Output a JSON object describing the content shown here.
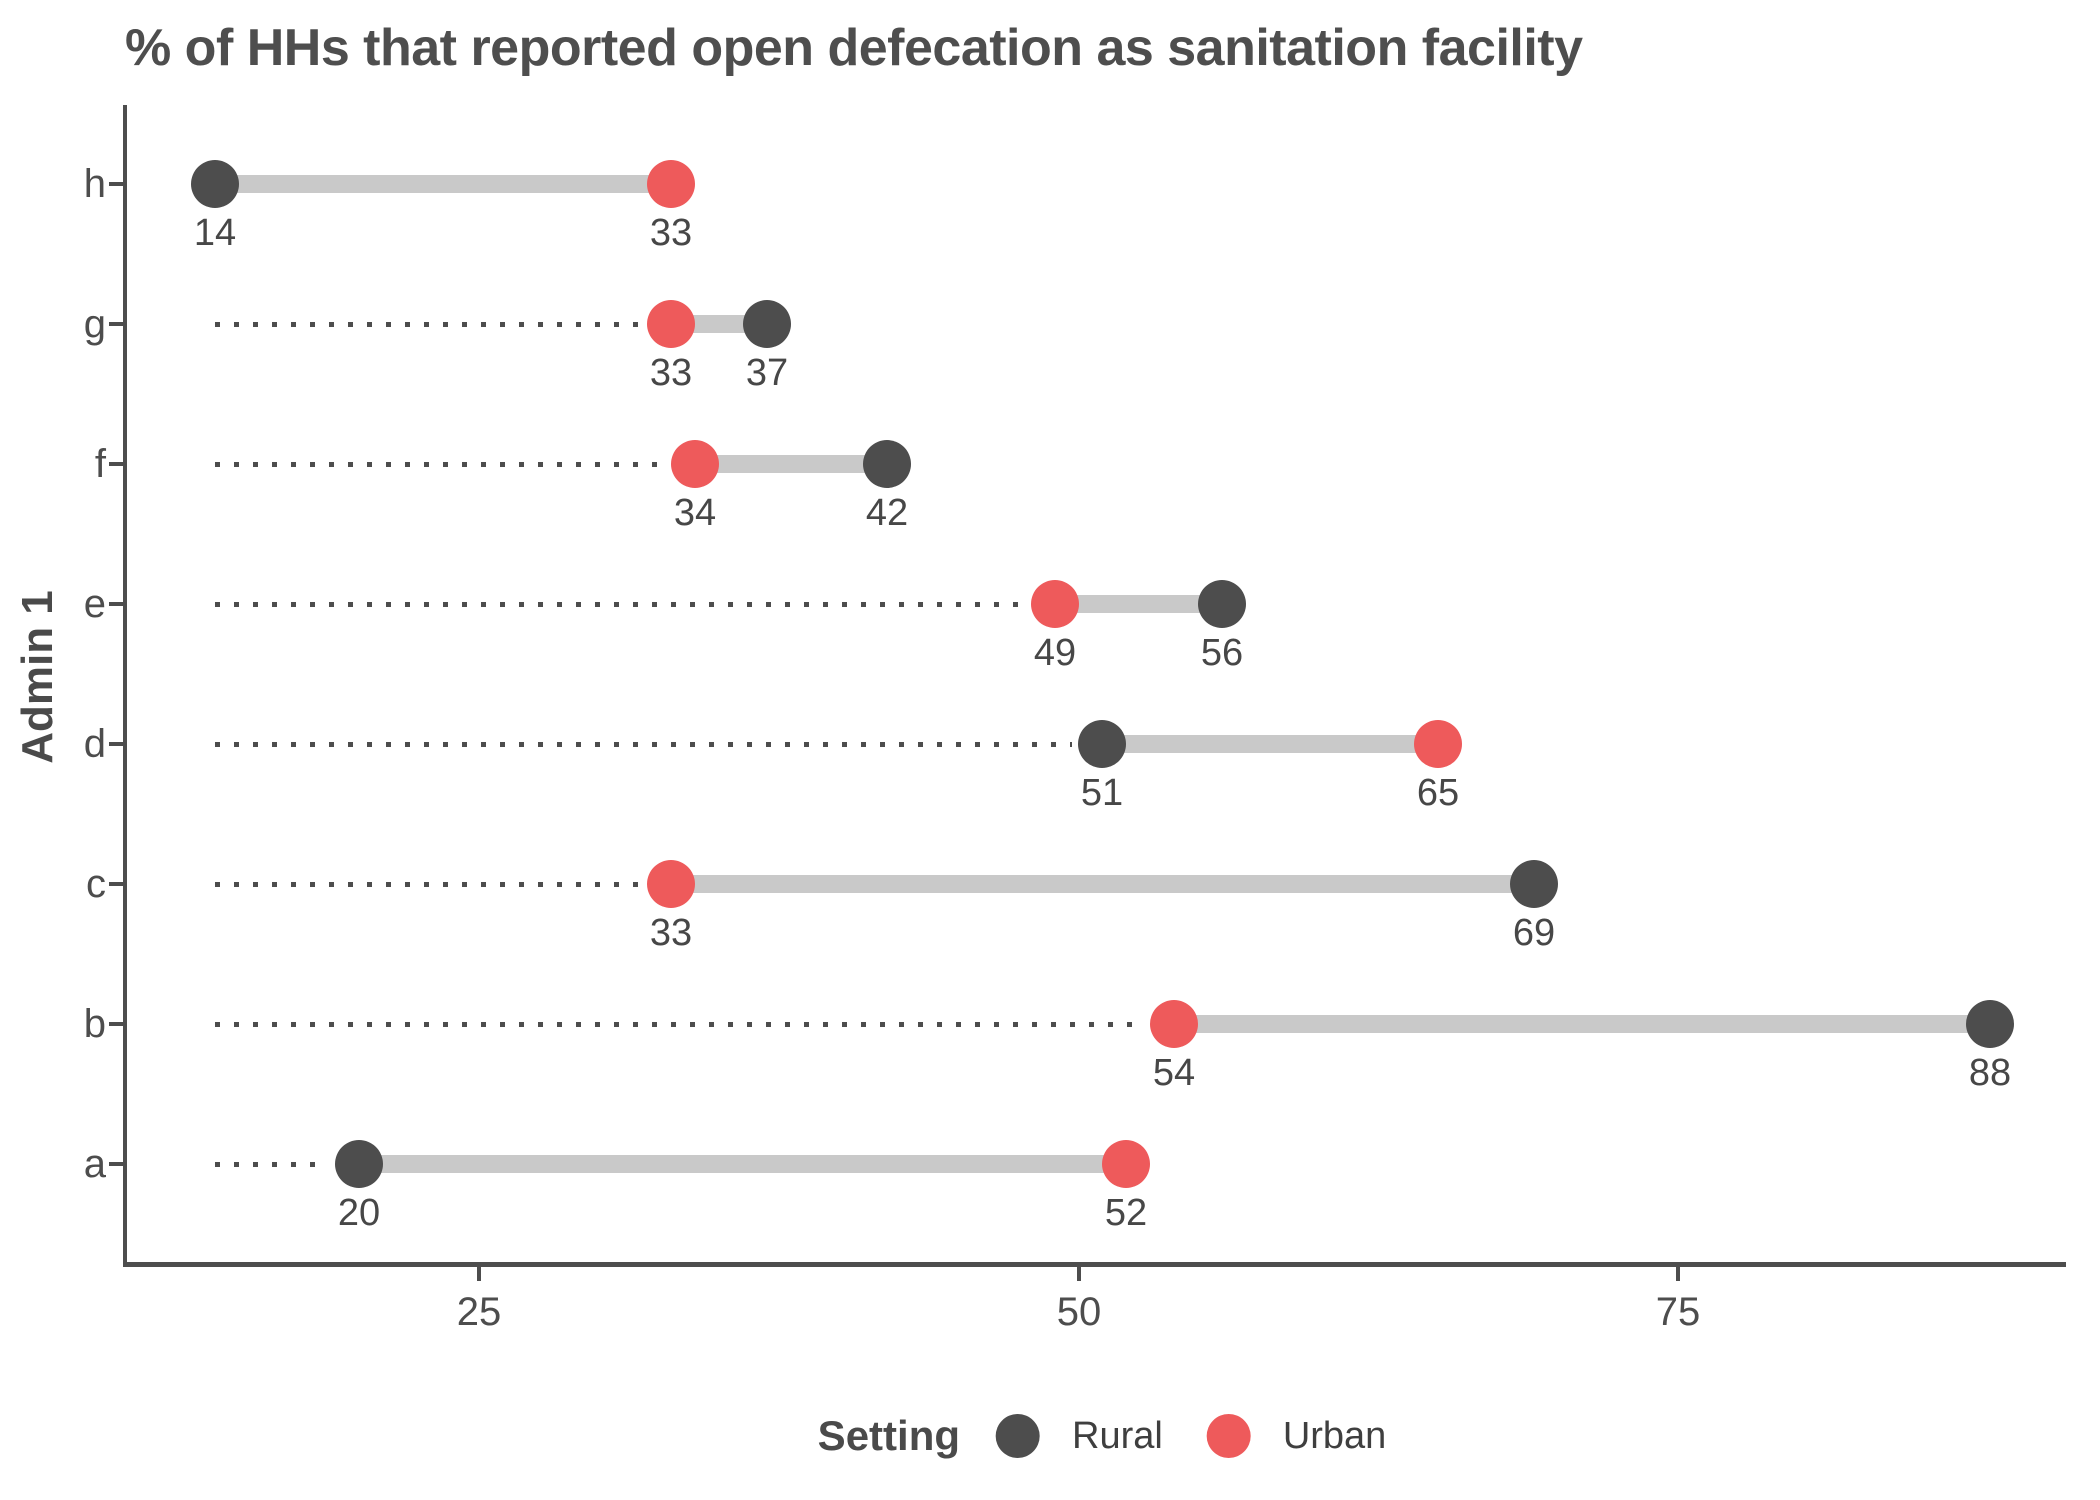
{
  "title": "% of HHs that reported open defecation as sanitation facility",
  "y_axis_label": "Admin 1",
  "legend": {
    "title": "Setting",
    "items": [
      {
        "label": "Rural",
        "color": "#4d4d4d"
      },
      {
        "label": "Urban",
        "color": "#ee5a5b"
      }
    ]
  },
  "colors": {
    "rural": "#4d4d4d",
    "urban": "#ee5a5b",
    "connector": "#c9c9c9",
    "leader": "#4d4d4d",
    "axis": "#4d4d4d",
    "text": "#474747"
  },
  "chart_data": {
    "type": "scatter",
    "variant": "dumbbell",
    "title": "% of HHs that reported open defecation as sanitation facility",
    "xlabel": "",
    "ylabel": "Admin 1",
    "categories": [
      "h",
      "g",
      "f",
      "e",
      "d",
      "c",
      "b",
      "a"
    ],
    "series": [
      {
        "name": "Rural",
        "values": [
          14,
          37,
          42,
          56,
          51,
          69,
          88,
          20
        ]
      },
      {
        "name": "Urban",
        "values": [
          33,
          33,
          34,
          49,
          65,
          33,
          54,
          52
        ]
      }
    ],
    "x_tick_values": [
      25,
      50,
      75
    ],
    "x_tick_labels": [
      "25",
      "50",
      "75"
    ],
    "xlim": [
      10,
      92
    ],
    "grid": "off",
    "legend_position": "bottom",
    "notes": "Each row shows Rural vs Urban dots joined by a grey bar; dotted leader line runs from left margin to the lower value dot; value labels printed under each dot."
  }
}
